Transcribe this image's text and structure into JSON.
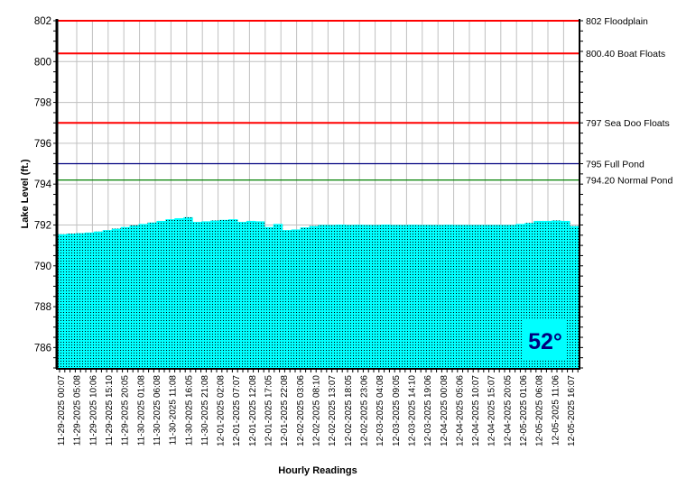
{
  "chart_data": {
    "type": "area",
    "title": "",
    "xlabel": "Hourly Readings",
    "ylabel": "Lake Level (ft.)",
    "ylim": [
      785,
      802
    ],
    "yticks": [
      786,
      788,
      790,
      792,
      794,
      796,
      798,
      800,
      802
    ],
    "grid": true,
    "x_tick_labels": [
      "11-29-2025 00:07",
      "11-29-2025 05:08",
      "11-29-2025 10:06",
      "11-29-2025 15:10",
      "11-29-2025 20:05",
      "11-30-2025 01:08",
      "11-30-2025 06:08",
      "11-30-2025 11:08",
      "11-30-2025 16:05",
      "11-30-2025 21:08",
      "12-01-2025 02:08",
      "12-01-2025 07:07",
      "12-01-2025 12:08",
      "12-01-2025 17:05",
      "12-01-2025 22:08",
      "12-02-2025 03:06",
      "12-02-2025 08:10",
      "12-02-2025 13:07",
      "12-02-2025 18:05",
      "12-02-2025 23:06",
      "12-03-2025 04:08",
      "12-03-2025 09:05",
      "12-03-2025 14:10",
      "12-03-2025 19:06",
      "12-04-2025 00:08",
      "12-04-2025 05:06",
      "12-04-2025 10:07",
      "12-04-2025 15:07",
      "12-04-2025 20:05",
      "12-05-2025 01:06",
      "12-05-2025 06:08",
      "12-05-2025 11:06",
      "12-05-2025 16:07"
    ],
    "series": [
      {
        "name": "Lake Level",
        "color": "#00FFFF",
        "values": [
          791.55,
          791.58,
          791.6,
          791.63,
          791.68,
          791.75,
          791.82,
          791.9,
          791.98,
          792.05,
          792.12,
          792.2,
          792.28,
          792.33,
          792.38,
          792.15,
          792.18,
          792.22,
          792.25,
          792.28,
          792.15,
          792.2,
          792.18,
          791.9,
          792.05,
          791.75,
          791.78,
          791.88,
          791.95,
          792.0,
          792.0,
          792.02,
          792.0,
          792.01,
          792.0,
          792.0,
          792.02,
          792.0,
          792.0,
          792.01,
          792.0,
          792.0,
          792.0,
          792.01,
          792.0,
          792.0,
          792.0,
          792.0,
          792.0,
          792.0,
          792.0,
          792.05,
          792.1,
          792.2,
          792.2,
          792.22,
          792.2,
          791.95
        ]
      }
    ],
    "reference_lines": [
      {
        "value": 802,
        "label": "802 Floodplain",
        "color": "#FF0000"
      },
      {
        "value": 800.4,
        "label": "800.40 Boat Floats",
        "color": "#FF0000"
      },
      {
        "value": 797,
        "label": "797 Sea Doo Floats",
        "color": "#FF0000"
      },
      {
        "value": 795,
        "label": "795 Full Pond",
        "color": "#000080"
      },
      {
        "value": 794.2,
        "label": "794.20 Normal Pond",
        "color": "#008000"
      }
    ]
  },
  "temperature": {
    "label": "52°",
    "bg": "#00FFFF",
    "color": "#000080"
  }
}
